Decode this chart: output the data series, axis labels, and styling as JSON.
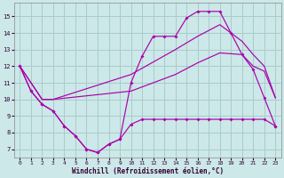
{
  "xlabel": "Windchill (Refroidissement éolien,°C)",
  "bg_color": "#cce8e8",
  "grid_color": "#aacccc",
  "line_color": "#aa00aa",
  "xlim": [
    -0.5,
    23.5
  ],
  "ylim": [
    6.5,
    15.8
  ],
  "xticks": [
    0,
    1,
    2,
    3,
    4,
    5,
    6,
    7,
    8,
    9,
    10,
    11,
    12,
    13,
    14,
    15,
    16,
    17,
    18,
    19,
    20,
    21,
    22,
    23
  ],
  "yticks": [
    7,
    8,
    9,
    10,
    11,
    12,
    13,
    14,
    15
  ],
  "line1_x": [
    0,
    1,
    2,
    3,
    4,
    5,
    6,
    7,
    8,
    9,
    10,
    11,
    12,
    13,
    14,
    15,
    16,
    17,
    18,
    19,
    20,
    21,
    22,
    23
  ],
  "line1_y": [
    12,
    10.5,
    9.7,
    9.3,
    8.4,
    7.8,
    7.0,
    6.8,
    7.3,
    7.6,
    8.5,
    8.8,
    8.8,
    8.8,
    8.8,
    8.8,
    8.8,
    8.8,
    8.8,
    8.8,
    8.8,
    8.8,
    8.8,
    8.4
  ],
  "line2_x": [
    0,
    1,
    2,
    3,
    4,
    5,
    6,
    7,
    8,
    9,
    10,
    11,
    12,
    13,
    14,
    15,
    16,
    17,
    18,
    19,
    20,
    21,
    22,
    23
  ],
  "line2_y": [
    12,
    10.5,
    9.7,
    9.3,
    8.4,
    7.8,
    7.0,
    6.8,
    7.3,
    7.6,
    11.0,
    12.6,
    13.8,
    13.8,
    13.8,
    14.9,
    15.3,
    15.3,
    15.3,
    14.0,
    12.7,
    11.8,
    10.1,
    8.4
  ],
  "line3_x": [
    0,
    2,
    3,
    10,
    14,
    16,
    18,
    20,
    21,
    22,
    23
  ],
  "line3_y": [
    12,
    10.0,
    10.0,
    10.5,
    11.5,
    12.2,
    12.8,
    12.7,
    12.0,
    11.7,
    10.1
  ],
  "line4_x": [
    0,
    2,
    3,
    10,
    14,
    16,
    18,
    20,
    21,
    22,
    23
  ],
  "line4_y": [
    12,
    10.0,
    10.0,
    11.5,
    13.0,
    13.8,
    14.5,
    13.5,
    12.7,
    12.0,
    10.1
  ]
}
